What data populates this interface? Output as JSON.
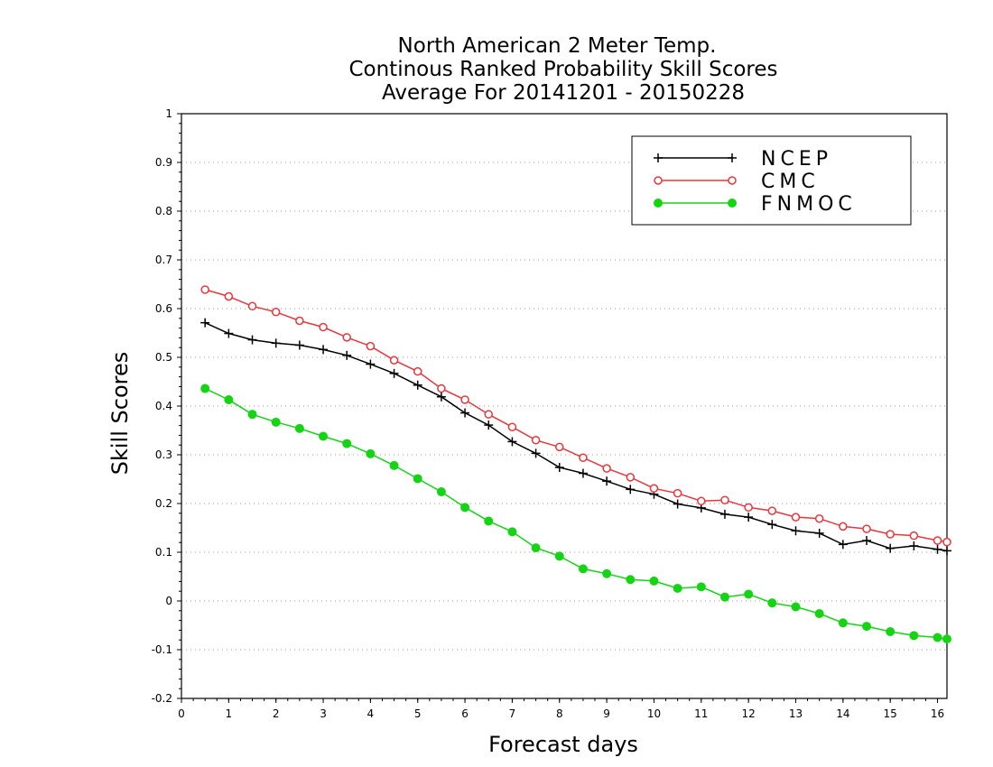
{
  "chart_data": {
    "type": "line",
    "title": "North American 2 Meter Temp.",
    "subtitle": "Continous Ranked Probability Skill Scores",
    "subtitle2": "Average For 20141201 - 20150228",
    "xlabel": "Forecast days",
    "ylabel": "Skill Scores",
    "xlim": [
      0,
      16.2
    ],
    "ylim": [
      -0.2,
      1
    ],
    "xticks": [
      0,
      1,
      2,
      3,
      4,
      5,
      6,
      7,
      8,
      9,
      10,
      11,
      12,
      13,
      14,
      15,
      16
    ],
    "yticks": [
      -0.2,
      -0.1,
      0,
      0.1,
      0.2,
      0.3,
      0.4,
      0.5,
      0.6,
      0.7,
      0.8,
      0.9,
      1
    ],
    "ytick_labels": [
      "-0.2",
      "-0.1",
      "0",
      "0.1",
      "0.2",
      "0.3",
      "0.4",
      "0.5",
      "0.6",
      "0.7",
      "0.8",
      "0.9",
      "1"
    ],
    "grid": true,
    "legend_position": "top-right",
    "x": [
      0.5,
      1,
      1.5,
      2,
      2.5,
      3,
      3.5,
      4,
      4.5,
      5,
      5.5,
      6,
      6.5,
      7,
      7.5,
      8,
      8.5,
      9,
      9.5,
      10,
      10.5,
      11,
      11.5,
      12,
      12.5,
      13,
      13.5,
      14,
      14.5,
      15,
      15.5,
      16,
      16.2
    ],
    "series": [
      {
        "name": "NCEP",
        "color": "#000000",
        "marker": "plus",
        "values": [
          0.571,
          0.549,
          0.536,
          0.529,
          0.525,
          0.516,
          0.504,
          0.486,
          0.467,
          0.443,
          0.419,
          0.386,
          0.361,
          0.327,
          0.303,
          0.274,
          0.262,
          0.246,
          0.229,
          0.219,
          0.199,
          0.191,
          0.178,
          0.172,
          0.157,
          0.144,
          0.139,
          0.116,
          0.124,
          0.108,
          0.113,
          0.106,
          0.103
        ]
      },
      {
        "name": "CMC",
        "color": "#e8363c",
        "marker": "open-circle",
        "values": [
          0.639,
          0.625,
          0.605,
          0.593,
          0.575,
          0.562,
          0.541,
          0.523,
          0.494,
          0.471,
          0.436,
          0.413,
          0.383,
          0.357,
          0.33,
          0.316,
          0.294,
          0.272,
          0.254,
          0.231,
          0.221,
          0.205,
          0.207,
          0.192,
          0.185,
          0.172,
          0.169,
          0.153,
          0.148,
          0.137,
          0.134,
          0.124,
          0.121
        ]
      },
      {
        "name": "FNMOC",
        "color": "#14d414",
        "marker": "filled-circle",
        "values": [
          0.436,
          0.413,
          0.383,
          0.367,
          0.354,
          0.338,
          0.323,
          0.302,
          0.278,
          0.251,
          0.224,
          0.192,
          0.164,
          0.142,
          0.109,
          0.092,
          0.066,
          0.056,
          0.044,
          0.041,
          0.026,
          0.029,
          0.008,
          0.014,
          -0.004,
          -0.012,
          -0.026,
          -0.045,
          -0.052,
          -0.063,
          -0.071,
          -0.075,
          -0.078
        ]
      }
    ]
  }
}
